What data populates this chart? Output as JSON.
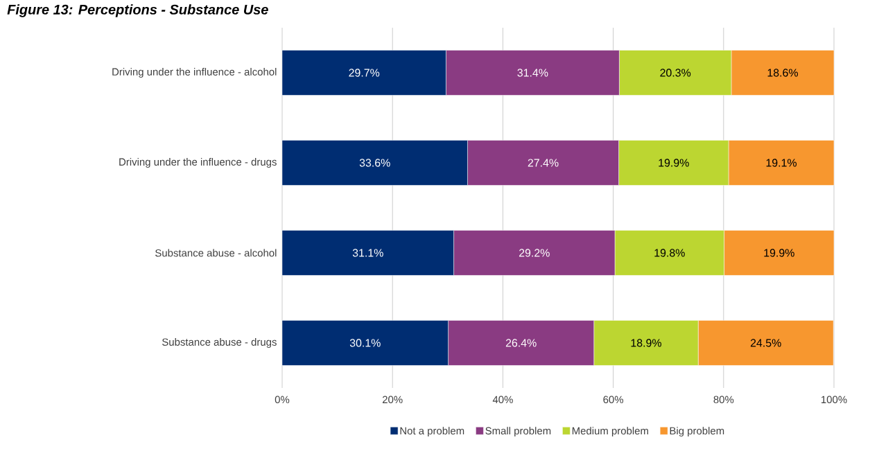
{
  "chart_data": {
    "type": "bar",
    "orientation": "horizontal",
    "stacked": true,
    "title": "Figure 13: Perceptions - Substance Use",
    "categories": [
      "Driving under the influence - alcohol",
      "Driving under the influence - drugs",
      "Substance abuse - alcohol",
      "Substance abuse - drugs"
    ],
    "series": [
      {
        "name": "Not a problem",
        "color": "#002d72",
        "values": [
          29.7,
          33.6,
          31.1,
          30.1
        ],
        "value_labels": [
          "29.7%",
          "33.6%",
          "31.1%",
          "30.1%"
        ]
      },
      {
        "name": "Small problem",
        "color": "#8a3b82",
        "values": [
          31.4,
          27.4,
          29.2,
          26.4
        ],
        "value_labels": [
          "31.4%",
          "27.4%",
          "29.2%",
          "26.4%"
        ]
      },
      {
        "name": "Medium problem",
        "color": "#bcd631",
        "values": [
          20.3,
          19.9,
          19.8,
          18.9
        ],
        "value_labels": [
          "20.3%",
          "19.9%",
          "19.8%",
          "18.9%"
        ]
      },
      {
        "name": "Big problem",
        "color": "#f7972f",
        "values": [
          18.6,
          19.1,
          19.9,
          24.5
        ],
        "value_labels": [
          "18.6%",
          "19.1%",
          "19.9%",
          "24.5%"
        ]
      }
    ],
    "xlim": [
      0,
      100
    ],
    "xticks": [
      {
        "value": 0,
        "label": "0%"
      },
      {
        "value": 20,
        "label": "20%"
      },
      {
        "value": 40,
        "label": "40%"
      },
      {
        "value": 60,
        "label": "60%"
      },
      {
        "value": 80,
        "label": "80%"
      },
      {
        "value": 100,
        "label": "100%"
      }
    ],
    "grid": "x",
    "legend": "bottom"
  }
}
